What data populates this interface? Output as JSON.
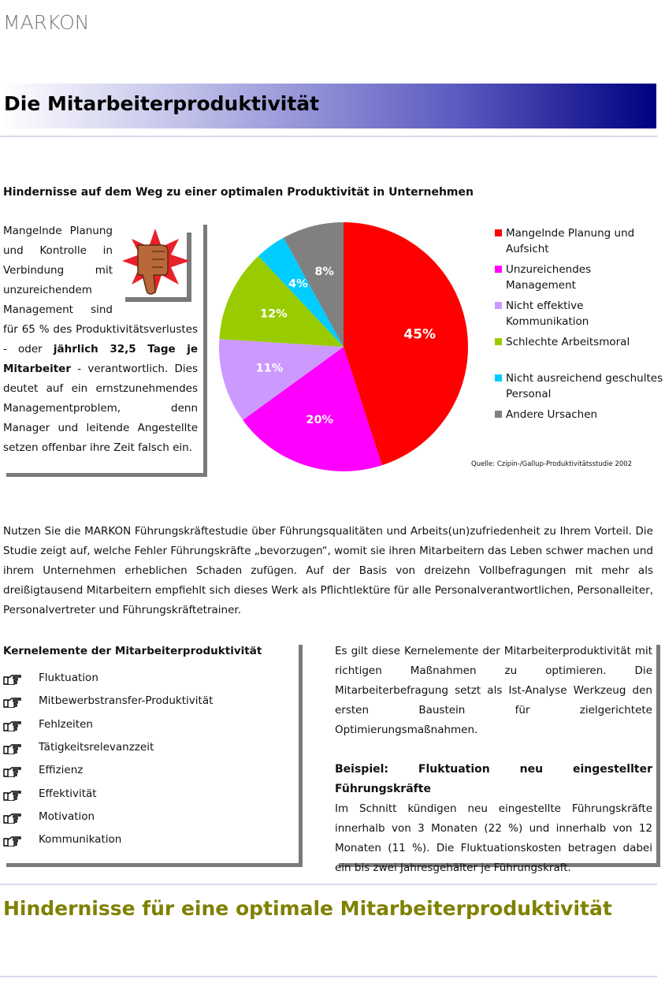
{
  "header": {
    "logo": "MARKON",
    "title": "Die Mitarbeiterproduktivität"
  },
  "section": {
    "heading": "Hindernisse auf dem Weg zu einer optimalen Produktivität in Unternehmen",
    "callout": [
      "Mangelnde Planung und Kontrolle in Verbindung mit unzureichendem Management sind für 65 % des Produktivitätsverlustes - oder ",
      "jährlich 32,5 Tage je Mitarbeiter",
      " - verantwortlich. Dies deutet auf ein ernstzunehmendes Managementproblem, denn Manager und leitende Angestellte setzen offenbar ihre Zeit falsch ein."
    ]
  },
  "chart_data": {
    "type": "pie",
    "categories": [
      "Mangelnde Planung und Aufsicht",
      "Unzureichendes Management",
      "Nicht effektive Kommunikation",
      "Schlechte Arbeitsmoral",
      "Nicht ausreichend geschultes Personal",
      "Andere Ursachen"
    ],
    "values": [
      45,
      20,
      11,
      12,
      4,
      8
    ],
    "value_labels": [
      "45%",
      "20%",
      "11%",
      "12%",
      "4%",
      "8%"
    ],
    "colors": [
      "#ff0000",
      "#ff00ff",
      "#cc99ff",
      "#99cc00",
      "#00ccff",
      "#808080"
    ],
    "source": "Quelle: Czipin-/Gallup-Produktivitätsstudie 2002"
  },
  "intro": "Nutzen Sie die MARKON Führungskräftestudie über Führungsqualitäten und Arbeits(un)zufriedenheit zu Ihrem Vorteil. Die Studie zeigt auf, welche Fehler Führungskräfte „bevorzugen“, womit sie ihren Mitarbeitern das Leben schwer machen und ihrem Unternehmen erheblichen Schaden zufügen. Auf der Basis von dreizehn Vollbefragungen mit mehr als dreißigtausend Mitarbeitern empfiehlt sich dieses Werk als Pflichtlektüre für alle Personalverantwortlichen, Personalleiter, Personalvertreter und Führungskräftetrainer.",
  "kernelemente": {
    "title": "Kernelemente der Mitarbeiterproduktivität",
    "items": [
      "Fluktuation",
      "Mitbewerbstransfer-Produktivität",
      "Fehlzeiten",
      "Tätigkeitsrelevanzzeit",
      "Effizienz",
      "Effektivität",
      "Motivation",
      "Kommunikation"
    ]
  },
  "right": {
    "text": "Es gilt diese Kernelemente der Mitarbeiterproduktivität mit richtigen Maßnahmen zu optimieren. Die Mitarbeiterbefragung setzt als Ist-Analyse Werkzeug den ersten Baustein für zielgerichtete Optimierungsmaßnahmen.",
    "example_title": "Beispiel: Fluktuation neu eingestellter Führungskräfte",
    "example_text": "Im Schnitt kündigen neu eingestellte Führungskräfte innerhalb von 3 Monaten (22 %) und innerhalb von 12 Monaten (11 %). Die Fluktuationskosten betragen dabei ein bis zwei Jahresgehälter je Führungskraft."
  },
  "footer_heading": "Hindernisse für eine optimale Mitarbeiterproduktivität"
}
